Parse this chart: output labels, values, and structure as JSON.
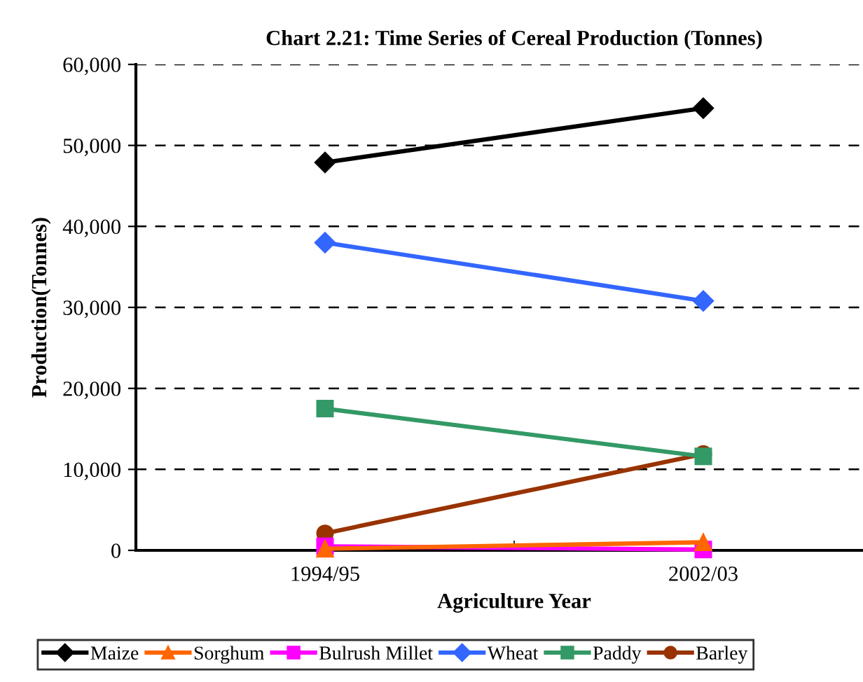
{
  "chart_data": {
    "type": "line",
    "title": "Chart 2.21: Time Series of Cereal Production (Tonnes)",
    "xlabel": "Agriculture Year",
    "ylabel": "Production(Tonnes)",
    "categories": [
      "1994/95",
      "2002/03"
    ],
    "series": [
      {
        "name": "Maize",
        "color": "#000000",
        "marker": "diamond",
        "values": [
          47900,
          54600
        ]
      },
      {
        "name": "Sorghum",
        "color": "#ff6600",
        "marker": "triangle",
        "values": [
          200,
          1000
        ]
      },
      {
        "name": "Bulrush Millet",
        "color": "#ff00ff",
        "marker": "square",
        "values": [
          500,
          100
        ]
      },
      {
        "name": "Wheat",
        "color": "#3366ff",
        "marker": "diamond",
        "values": [
          38000,
          30800
        ]
      },
      {
        "name": "Paddy",
        "color": "#339966",
        "marker": "square",
        "values": [
          17500,
          11600
        ]
      },
      {
        "name": "Barley",
        "color": "#993300",
        "marker": "circle",
        "values": [
          2100,
          11900
        ]
      }
    ],
    "ylim": [
      0,
      60000
    ],
    "yticks": [
      {
        "value": 0,
        "label": "0"
      },
      {
        "value": 10000,
        "label": "10,000"
      },
      {
        "value": 20000,
        "label": "20,000"
      },
      {
        "value": 30000,
        "label": "30,000"
      },
      {
        "value": 40000,
        "label": "40,000"
      },
      {
        "value": 50000,
        "label": "50,000"
      },
      {
        "value": 60000,
        "label": "60,000"
      }
    ],
    "grid": "y",
    "legend": "bottom",
    "line_style": "solid"
  }
}
